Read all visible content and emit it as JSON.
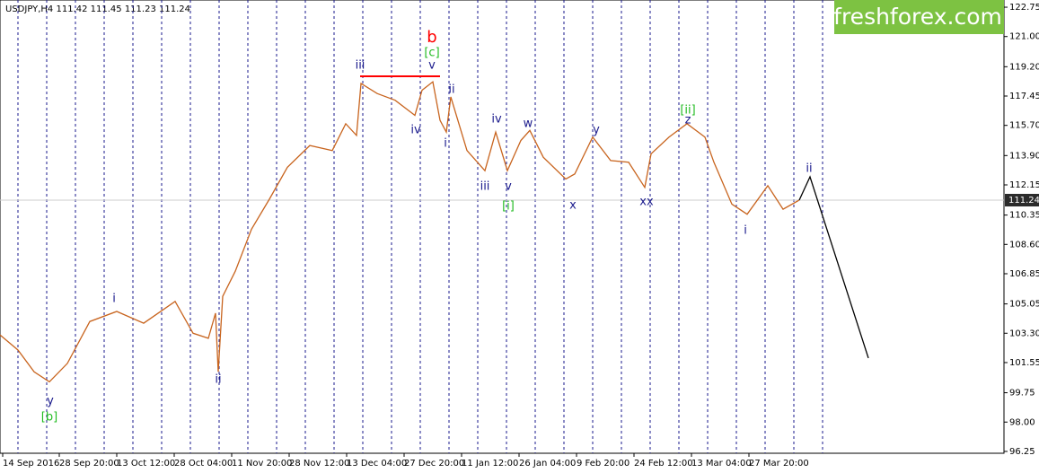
{
  "chart_data": {
    "type": "line",
    "title": "USDJPY,H4  111.42 111.45 111.23 111.24",
    "watermark": "freshforex.com",
    "xlim": [
      0,
      1118
    ],
    "ylim": [
      96.14,
      123.18
    ],
    "xticks": [
      {
        "value": 3,
        "label": "14 Sep 2016"
      },
      {
        "value": 66,
        "label": "28 Sep 20:00"
      },
      {
        "value": 130,
        "label": "13 Oct 12:00"
      },
      {
        "value": 194,
        "label": "28 Oct 04:00"
      },
      {
        "value": 258,
        "label": "11 Nov 20:00"
      },
      {
        "value": 322,
        "label": "28 Nov 12:00"
      },
      {
        "value": 386,
        "label": "13 Dec 04:00"
      },
      {
        "value": 450,
        "label": "27 Dec 20:00"
      },
      {
        "value": 514,
        "label": "11 Jan 12:00"
      },
      {
        "value": 578,
        "label": "26 Jan 04:00"
      },
      {
        "value": 642,
        "label": "9 Feb 20:00"
      },
      {
        "value": 706,
        "label": "24 Feb 12:00"
      },
      {
        "value": 770,
        "label": "13 Mar 04:00"
      },
      {
        "value": 834,
        "label": "27 Mar 20:00"
      }
    ],
    "yticks": [
      96.25,
      {
        "value": 98,
        "label": "98.00"
      },
      99.75,
      101.55,
      {
        "value": 103.3,
        "label": "103.30"
      },
      105.05,
      106.85,
      {
        "value": 108.6,
        "label": "108.60"
      },
      110.35,
      112.15,
      {
        "value": 113.9,
        "label": "113.90"
      },
      {
        "value": 115.7,
        "label": "115.70"
      },
      117.45,
      {
        "value": 119.2,
        "label": "119.20"
      },
      {
        "value": 121,
        "label": "121.00"
      },
      122.75
    ],
    "current_price": 111.24,
    "series": [
      {
        "color": "#c8641e",
        "x": [
          0,
          20,
          38,
          55,
          75,
          100,
          130,
          160,
          195,
          215,
          232,
          240,
          243,
          248,
          262,
          280,
          300,
          320,
          345,
          370,
          385,
          397,
          402,
          420,
          440,
          462,
          470,
          482,
          490,
          497,
          502,
          520,
          540,
          552,
          565,
          580,
          590,
          605,
          630,
          640,
          660,
          680,
          700,
          718,
          725,
          745,
          765,
          785,
          795,
          815,
          832,
          855,
          872,
          890
        ],
        "values": [
          103.2,
          102.3,
          101.0,
          100.4,
          101.5,
          104.0,
          104.6,
          103.9,
          105.2,
          103.3,
          103.0,
          104.5,
          101.0,
          105.5,
          107.0,
          109.5,
          111.3,
          113.2,
          114.5,
          114.2,
          115.8,
          115.1,
          118.2,
          117.6,
          117.2,
          116.3,
          117.8,
          118.3,
          116.0,
          115.3,
          117.4,
          114.2,
          113.0,
          115.3,
          113.0,
          114.8,
          115.4,
          113.8,
          112.5,
          112.8,
          115.0,
          113.6,
          113.5,
          112.0,
          114.0,
          115.0,
          115.8,
          115.0,
          113.5,
          111.0,
          110.4,
          112.1,
          110.7,
          111.24
        ]
      },
      {
        "color": "#000000",
        "x": [
          890,
          902,
          967
        ],
        "values": [
          111.24,
          112.63,
          101.82
        ]
      },
      {
        "color": "#ff0000",
        "x": [
          401,
          490
        ],
        "values": [
          118.63,
          118.63
        ]
      }
    ],
    "annotations": [
      {
        "text": "y",
        "color": "#1a1a8c"
      },
      {
        "text": "[b]",
        "color": "#22bb22"
      },
      {
        "text": "i",
        "color": "#1a1a8c"
      },
      {
        "text": "ii",
        "color": "#1a1a8c"
      },
      {
        "text": "iii",
        "color": "#1a1a8c"
      },
      {
        "text": "b",
        "color": "#ff0000"
      },
      {
        "text": "[c]",
        "color": "#22bb22"
      },
      {
        "text": "v",
        "color": "#1a1a8c"
      },
      {
        "text": "ii",
        "color": "#1a1a8c"
      },
      {
        "text": "iv",
        "color": "#1a1a8c"
      },
      {
        "text": "i",
        "color": "#1a1a8c"
      },
      {
        "text": "iii",
        "color": "#1a1a8c"
      },
      {
        "text": "iv",
        "color": "#1a1a8c"
      },
      {
        "text": "v",
        "color": "#1a1a8c"
      },
      {
        "text": "[i]",
        "color": "#22bb22"
      },
      {
        "text": "w",
        "color": "#1a1a8c"
      },
      {
        "text": "x",
        "color": "#1a1a8c"
      },
      {
        "text": "y",
        "color": "#1a1a8c"
      },
      {
        "text": "xx",
        "color": "#1a1a8c"
      },
      {
        "text": "[ii]",
        "color": "#22bb22"
      },
      {
        "text": "z",
        "color": "#1a1a8c"
      },
      {
        "text": "i",
        "color": "#1a1a8c"
      },
      {
        "text": "ii",
        "color": "#1a1a8c"
      }
    ]
  }
}
